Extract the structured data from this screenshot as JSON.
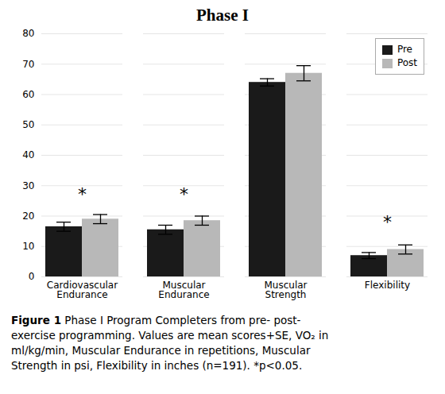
{
  "chart_data": {
    "type": "bar",
    "title": "Phase I",
    "categories": [
      "Cardiovascular\nEndurance",
      "Muscular\nEndurance",
      "Muscular\nStrength",
      "Flexibility"
    ],
    "series": [
      {
        "name": "Pre",
        "color": "#1a1a1a",
        "values": [
          16.5,
          15.5,
          64.0,
          7.0
        ],
        "errors": [
          1.5,
          1.5,
          1.2,
          1.0
        ]
      },
      {
        "name": "Post",
        "color": "#b8b8b8",
        "values": [
          19.0,
          18.5,
          67.0,
          9.0
        ],
        "errors": [
          1.5,
          1.5,
          2.5,
          1.5
        ]
      }
    ],
    "ylim": [
      0,
      80
    ],
    "yticks": [
      0,
      10,
      20,
      30,
      40,
      50,
      60,
      70,
      80
    ],
    "grid": true,
    "legend": "upper right",
    "annotations": [
      {
        "text": "*",
        "x": "Cardiovascular\nEndurance",
        "y": 27
      },
      {
        "text": "*",
        "x": "Muscular\nEndurance",
        "y": 27
      },
      {
        "text": "*",
        "x": "Flexibility",
        "y": 18
      }
    ],
    "caption": "Figure 1  Phase I Program Completers from pre- post-\nexercise programming. Values are mean scores+SE, VO₂ in\nml/kg/min, Muscular Endurance in repetitions, Muscular\nStrength in psi, Flexibility in inches (n=191). *p<0.05."
  }
}
